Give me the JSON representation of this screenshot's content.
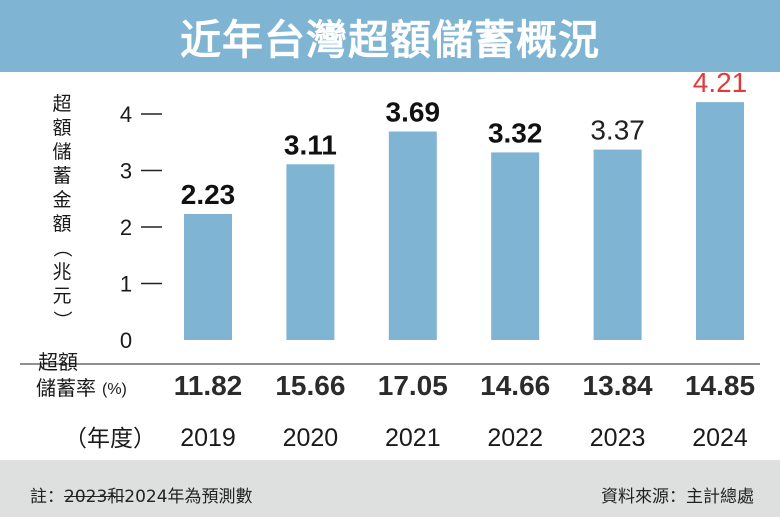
{
  "title": "近年台灣超額儲蓄概況",
  "note": {
    "prefix": "註：",
    "struck": "2023和",
    "rest": "2024年為預測數"
  },
  "source": "資料來源：主計總處",
  "colors": {
    "title_bg": "#7fb4d3",
    "bar": "#7fb4d3",
    "highlight_label": "#e23a3a",
    "footer_bg": "#dedfdf",
    "axis_text": "#1a1a1a"
  },
  "chart_data": {
    "type": "bar",
    "categories": [
      "2019",
      "2020",
      "2021",
      "2022",
      "2023",
      "2024"
    ],
    "values": [
      2.23,
      3.11,
      3.69,
      3.32,
      3.37,
      4.21
    ],
    "value_labels": [
      "2.23",
      "3.11",
      "3.69",
      "3.32",
      "3.37",
      "4.21"
    ],
    "label_styles": [
      "bold",
      "bold",
      "bold",
      "bold",
      "normal",
      "highlight"
    ],
    "ylabel": "超額儲蓄金額（兆元）",
    "ylabel_lines": [
      "超",
      "額",
      "儲",
      "蓄",
      "金",
      "額",
      "（",
      "兆",
      "元",
      "）"
    ],
    "yticks": [
      0,
      1,
      2,
      3,
      4
    ],
    "ylim": [
      0,
      4.4
    ],
    "xlabel": "（年度）",
    "rate_row": {
      "label_line1": "超額",
      "label_line2": "儲蓄率",
      "label_unit": "(%)",
      "values": [
        "11.82",
        "15.66",
        "17.05",
        "14.66",
        "13.84",
        "14.85"
      ]
    },
    "grid": false
  }
}
